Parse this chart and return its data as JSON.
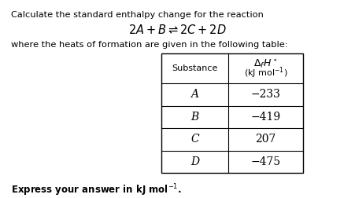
{
  "title_line1": "Calculate the standard enthalpy change for the reaction",
  "title_line2": "$2A + B \\rightleftharpoons 2C + 2D$",
  "title_line3": "where the heats of formation are given in the following table:",
  "footer": "Express your answer in kJ mol$^{-1}$.",
  "col1_header": "Substance",
  "col2_header_line1": "$\\Delta_f H^\\circ$",
  "col2_header_line2": "(kJ mol$^{-1}$)",
  "substances": [
    "A",
    "B",
    "C",
    "D"
  ],
  "values": [
    "−233",
    "−419",
    "207",
    "−475"
  ],
  "bg_color": "#ffffff",
  "text_color": "#000000",
  "figsize": [
    4.51,
    2.52
  ],
  "dpi": 100
}
